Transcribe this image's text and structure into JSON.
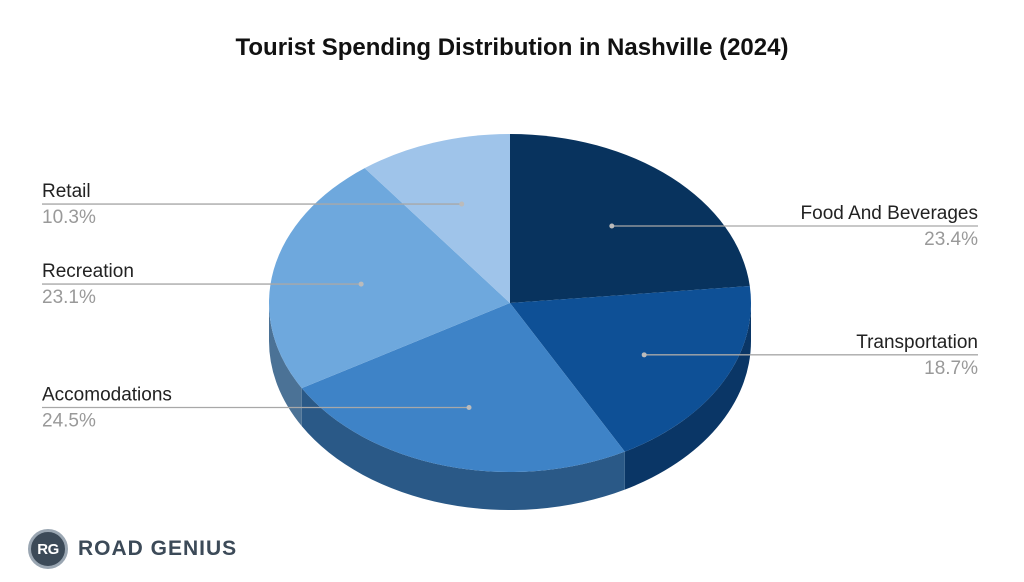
{
  "chart_data": {
    "type": "pie",
    "style": "3d",
    "title": "Tourist Spending Distribution in Nashville (2024)",
    "slices": [
      {
        "name": "Food And Beverages",
        "value": 23.4,
        "pct_label": "23.4%",
        "color": "#08335e"
      },
      {
        "name": "Transportation",
        "value": 18.7,
        "pct_label": "18.7%",
        "color": "#0e5096"
      },
      {
        "name": "Accomodations",
        "value": 24.5,
        "pct_label": "24.5%",
        "color": "#3e83c7"
      },
      {
        "name": "Recreation",
        "value": 23.1,
        "pct_label": "23.1%",
        "color": "#6ea8dd"
      },
      {
        "name": "Retail",
        "value": 10.3,
        "pct_label": "10.3%",
        "color": "#9fc4ea"
      }
    ]
  },
  "brand": {
    "badge": "RG",
    "name": "ROAD GENIUS"
  }
}
